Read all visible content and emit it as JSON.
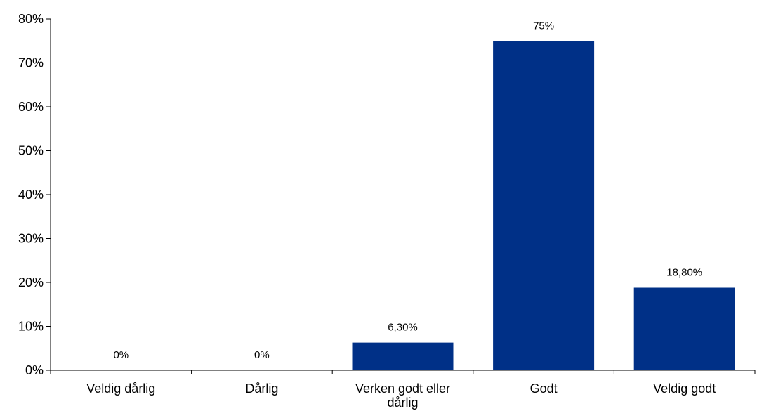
{
  "chart_data": {
    "type": "bar",
    "title": "",
    "xlabel": "",
    "ylabel": "",
    "categories": [
      "Veldig dårlig",
      "Dårlig",
      "Verken godt eller dårlig",
      "Godt",
      "Veldig godt"
    ],
    "category_label_lines": [
      [
        "Veldig dårlig"
      ],
      [
        "Dårlig"
      ],
      [
        "Verken godt eller",
        "dårlig"
      ],
      [
        "Godt"
      ],
      [
        "Veldig godt"
      ]
    ],
    "values": [
      0,
      0,
      6.3,
      75,
      18.8
    ],
    "data_labels": [
      "0%",
      "0%",
      "6,30%",
      "75%",
      "18,80%"
    ],
    "ylim": [
      0,
      80
    ],
    "yticks": [
      0,
      10,
      20,
      30,
      40,
      50,
      60,
      70,
      80
    ],
    "ytick_labels": [
      "0%",
      "10%",
      "20%",
      "30%",
      "40%",
      "50%",
      "60%",
      "70%",
      "80%"
    ],
    "grid": false,
    "legend": "none",
    "bar_color": "#003087"
  }
}
